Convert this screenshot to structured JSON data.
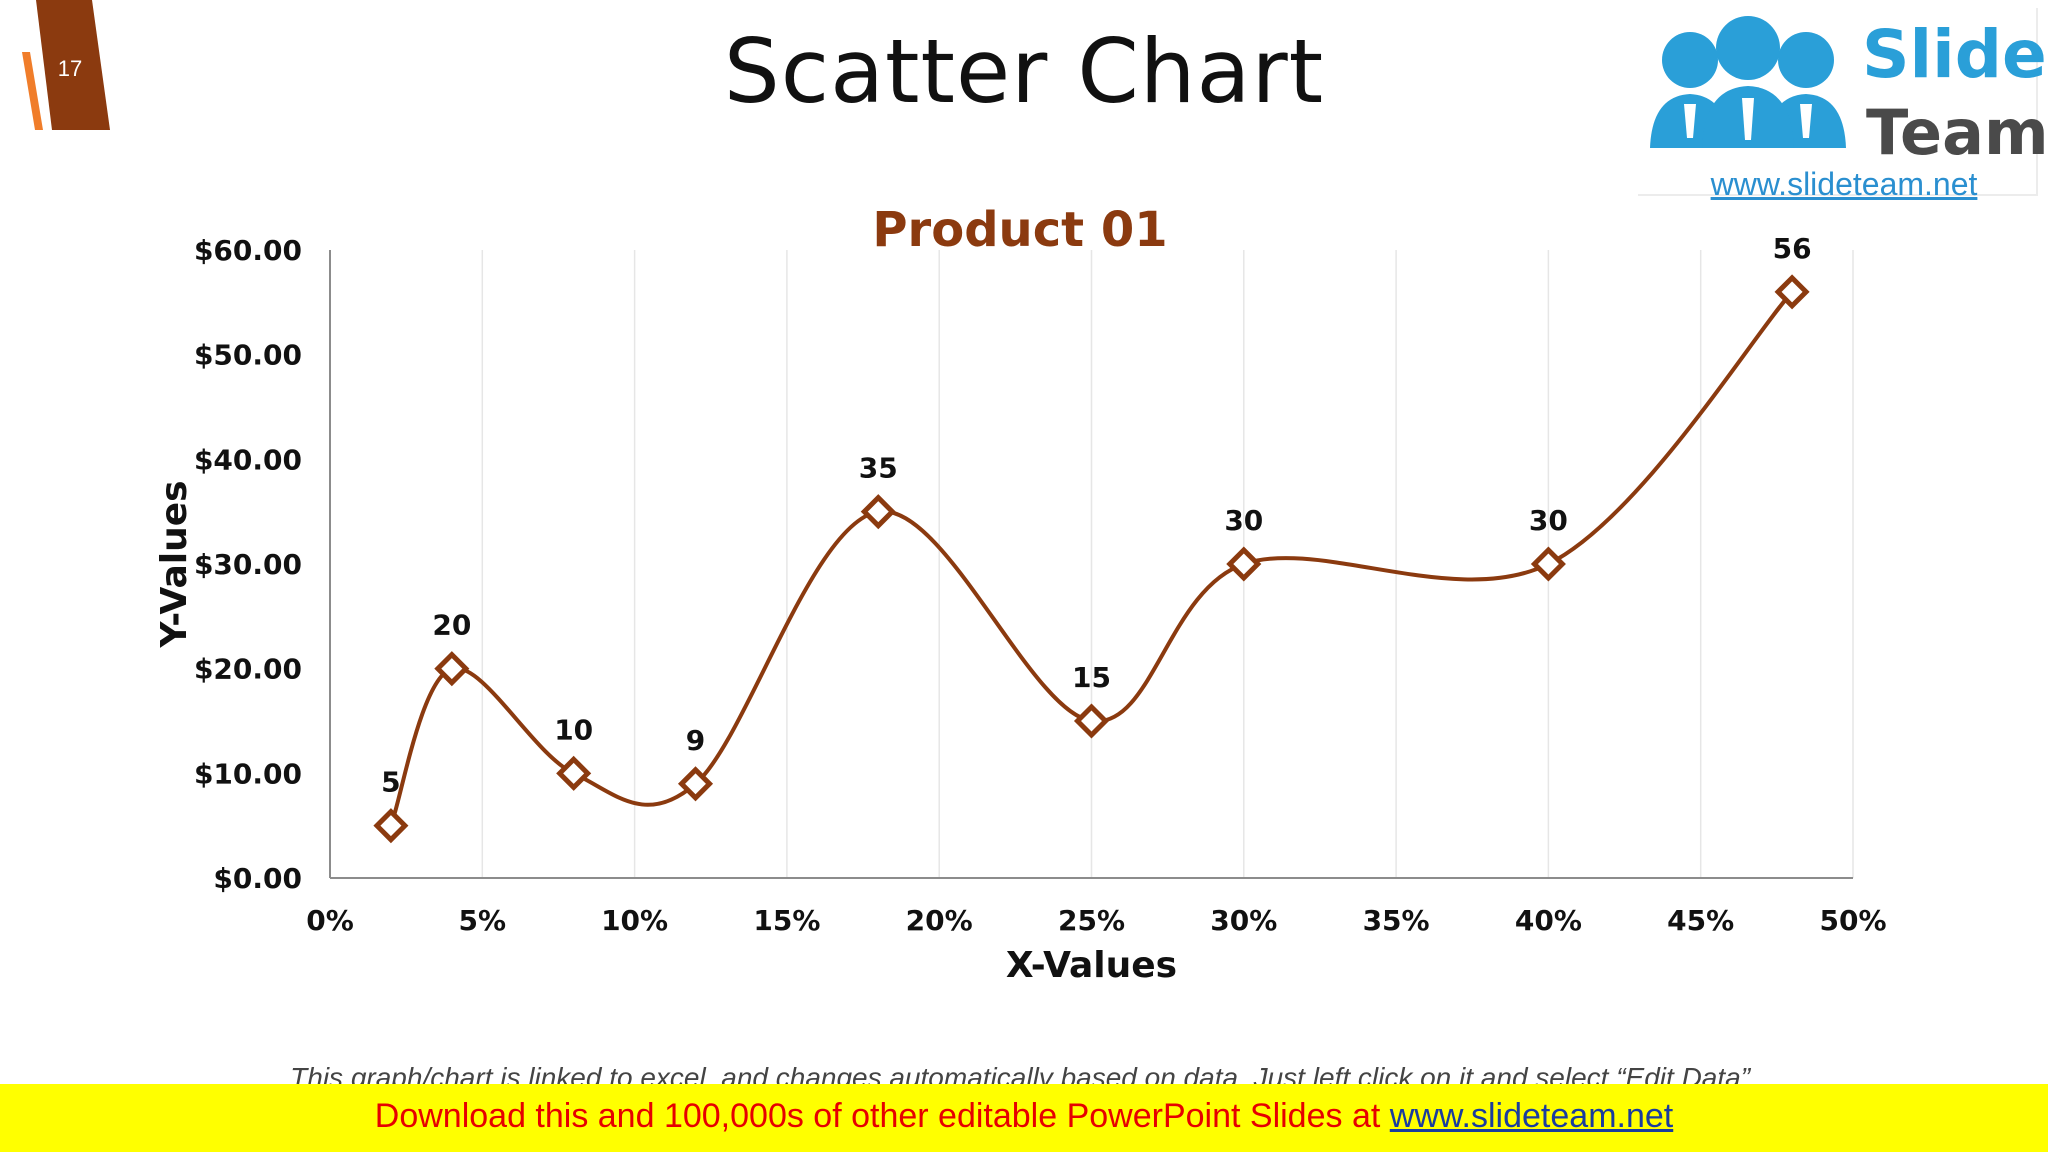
{
  "slide": {
    "number": "17",
    "title": "Scatter Chart",
    "accent_color": "#8b3a0f"
  },
  "logo": {
    "word1": "Slide",
    "word2": "Team",
    "url": "www.slideteam.net",
    "icon": "people-group-icon"
  },
  "chart_data": {
    "type": "scatter",
    "title": "Product 01",
    "xlabel": "X-Values",
    "ylabel": "Y-Values",
    "x": [
      0.02,
      0.04,
      0.08,
      0.12,
      0.18,
      0.25,
      0.3,
      0.4,
      0.48
    ],
    "y": [
      5,
      20,
      10,
      9,
      35,
      15,
      30,
      30,
      56
    ],
    "data_labels": [
      "5",
      "20",
      "10",
      "9",
      "35",
      "15",
      "30",
      "30",
      "56"
    ],
    "xlim": [
      0,
      0.5
    ],
    "ylim": [
      0,
      60
    ],
    "x_ticks": [
      "0%",
      "5%",
      "10%",
      "15%",
      "20%",
      "25%",
      "30%",
      "35%",
      "40%",
      "45%",
      "50%"
    ],
    "y_ticks": [
      "$0.00",
      "$10.00",
      "$20.00",
      "$30.00",
      "$40.00",
      "$50.00",
      "$60.00"
    ],
    "smooth_line": true,
    "grid": "vertical",
    "marker": "diamond",
    "series_color": "#8b3a0f"
  },
  "footnote": "This graph/chart is linked to excel, and changes automatically based on data. Just left click on it and select “Edit Data”.",
  "banner": {
    "text": "Download this and 100,000s of other editable PowerPoint Slides at",
    "link": "www.slideteam.net"
  }
}
